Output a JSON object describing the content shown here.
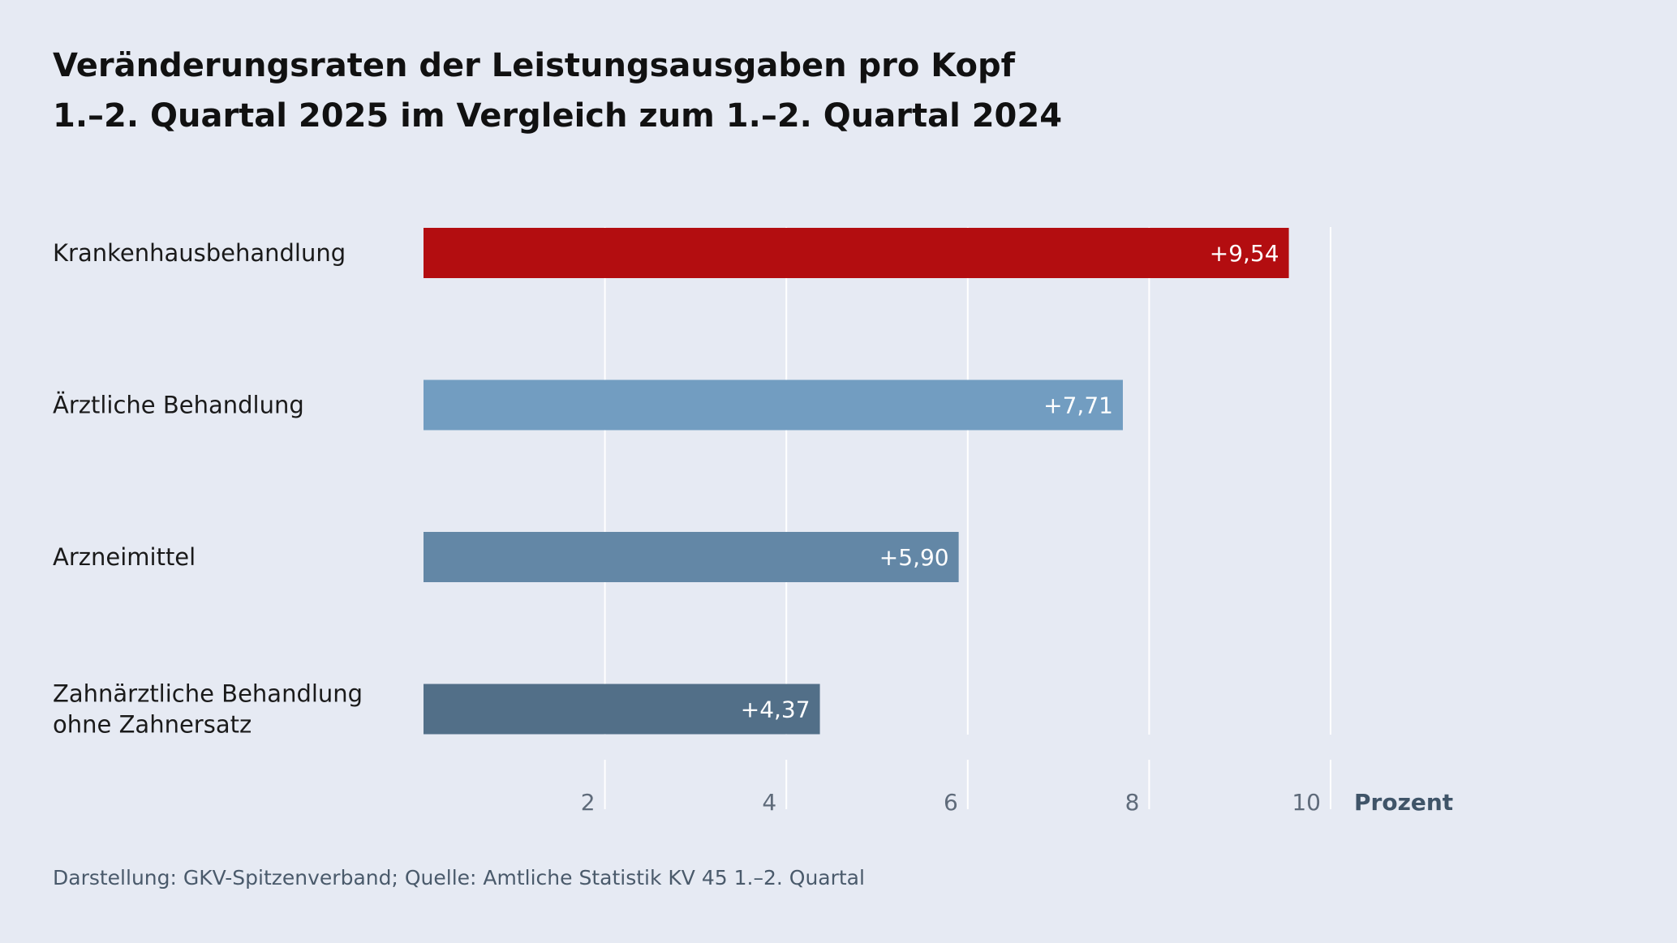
{
  "title": "Veränderungsraten der Leistungsausgaben pro Kopf",
  "subtitle": "1.–2. Quartal 2025 im Vergleich zum 1.–2. Quartal 2024",
  "source": "Darstellung: GKV-Spitzenverband; Quelle: Amtliche Statistik KV 45 1.–2. Quartal",
  "chart_data": {
    "type": "bar",
    "orientation": "horizontal",
    "categories": [
      [
        "Krankenhausbehandlung"
      ],
      [
        "Ärztliche Behandlung"
      ],
      [
        "Arzneimittel"
      ],
      [
        "Zahnärztliche Behandlung",
        "ohne Zahnersatz"
      ]
    ],
    "values": [
      9.54,
      7.71,
      5.9,
      4.37
    ],
    "value_labels": [
      "+9,54",
      "+7,71",
      "+5,90",
      "+4,37"
    ],
    "colors": [
      "#b30d10",
      "#729dc1",
      "#6387a6",
      "#526f88"
    ],
    "xlim": [
      0,
      10
    ],
    "xticks": [
      2,
      4,
      6,
      8,
      10
    ],
    "xlabel": "Prozent",
    "grid": true
  }
}
